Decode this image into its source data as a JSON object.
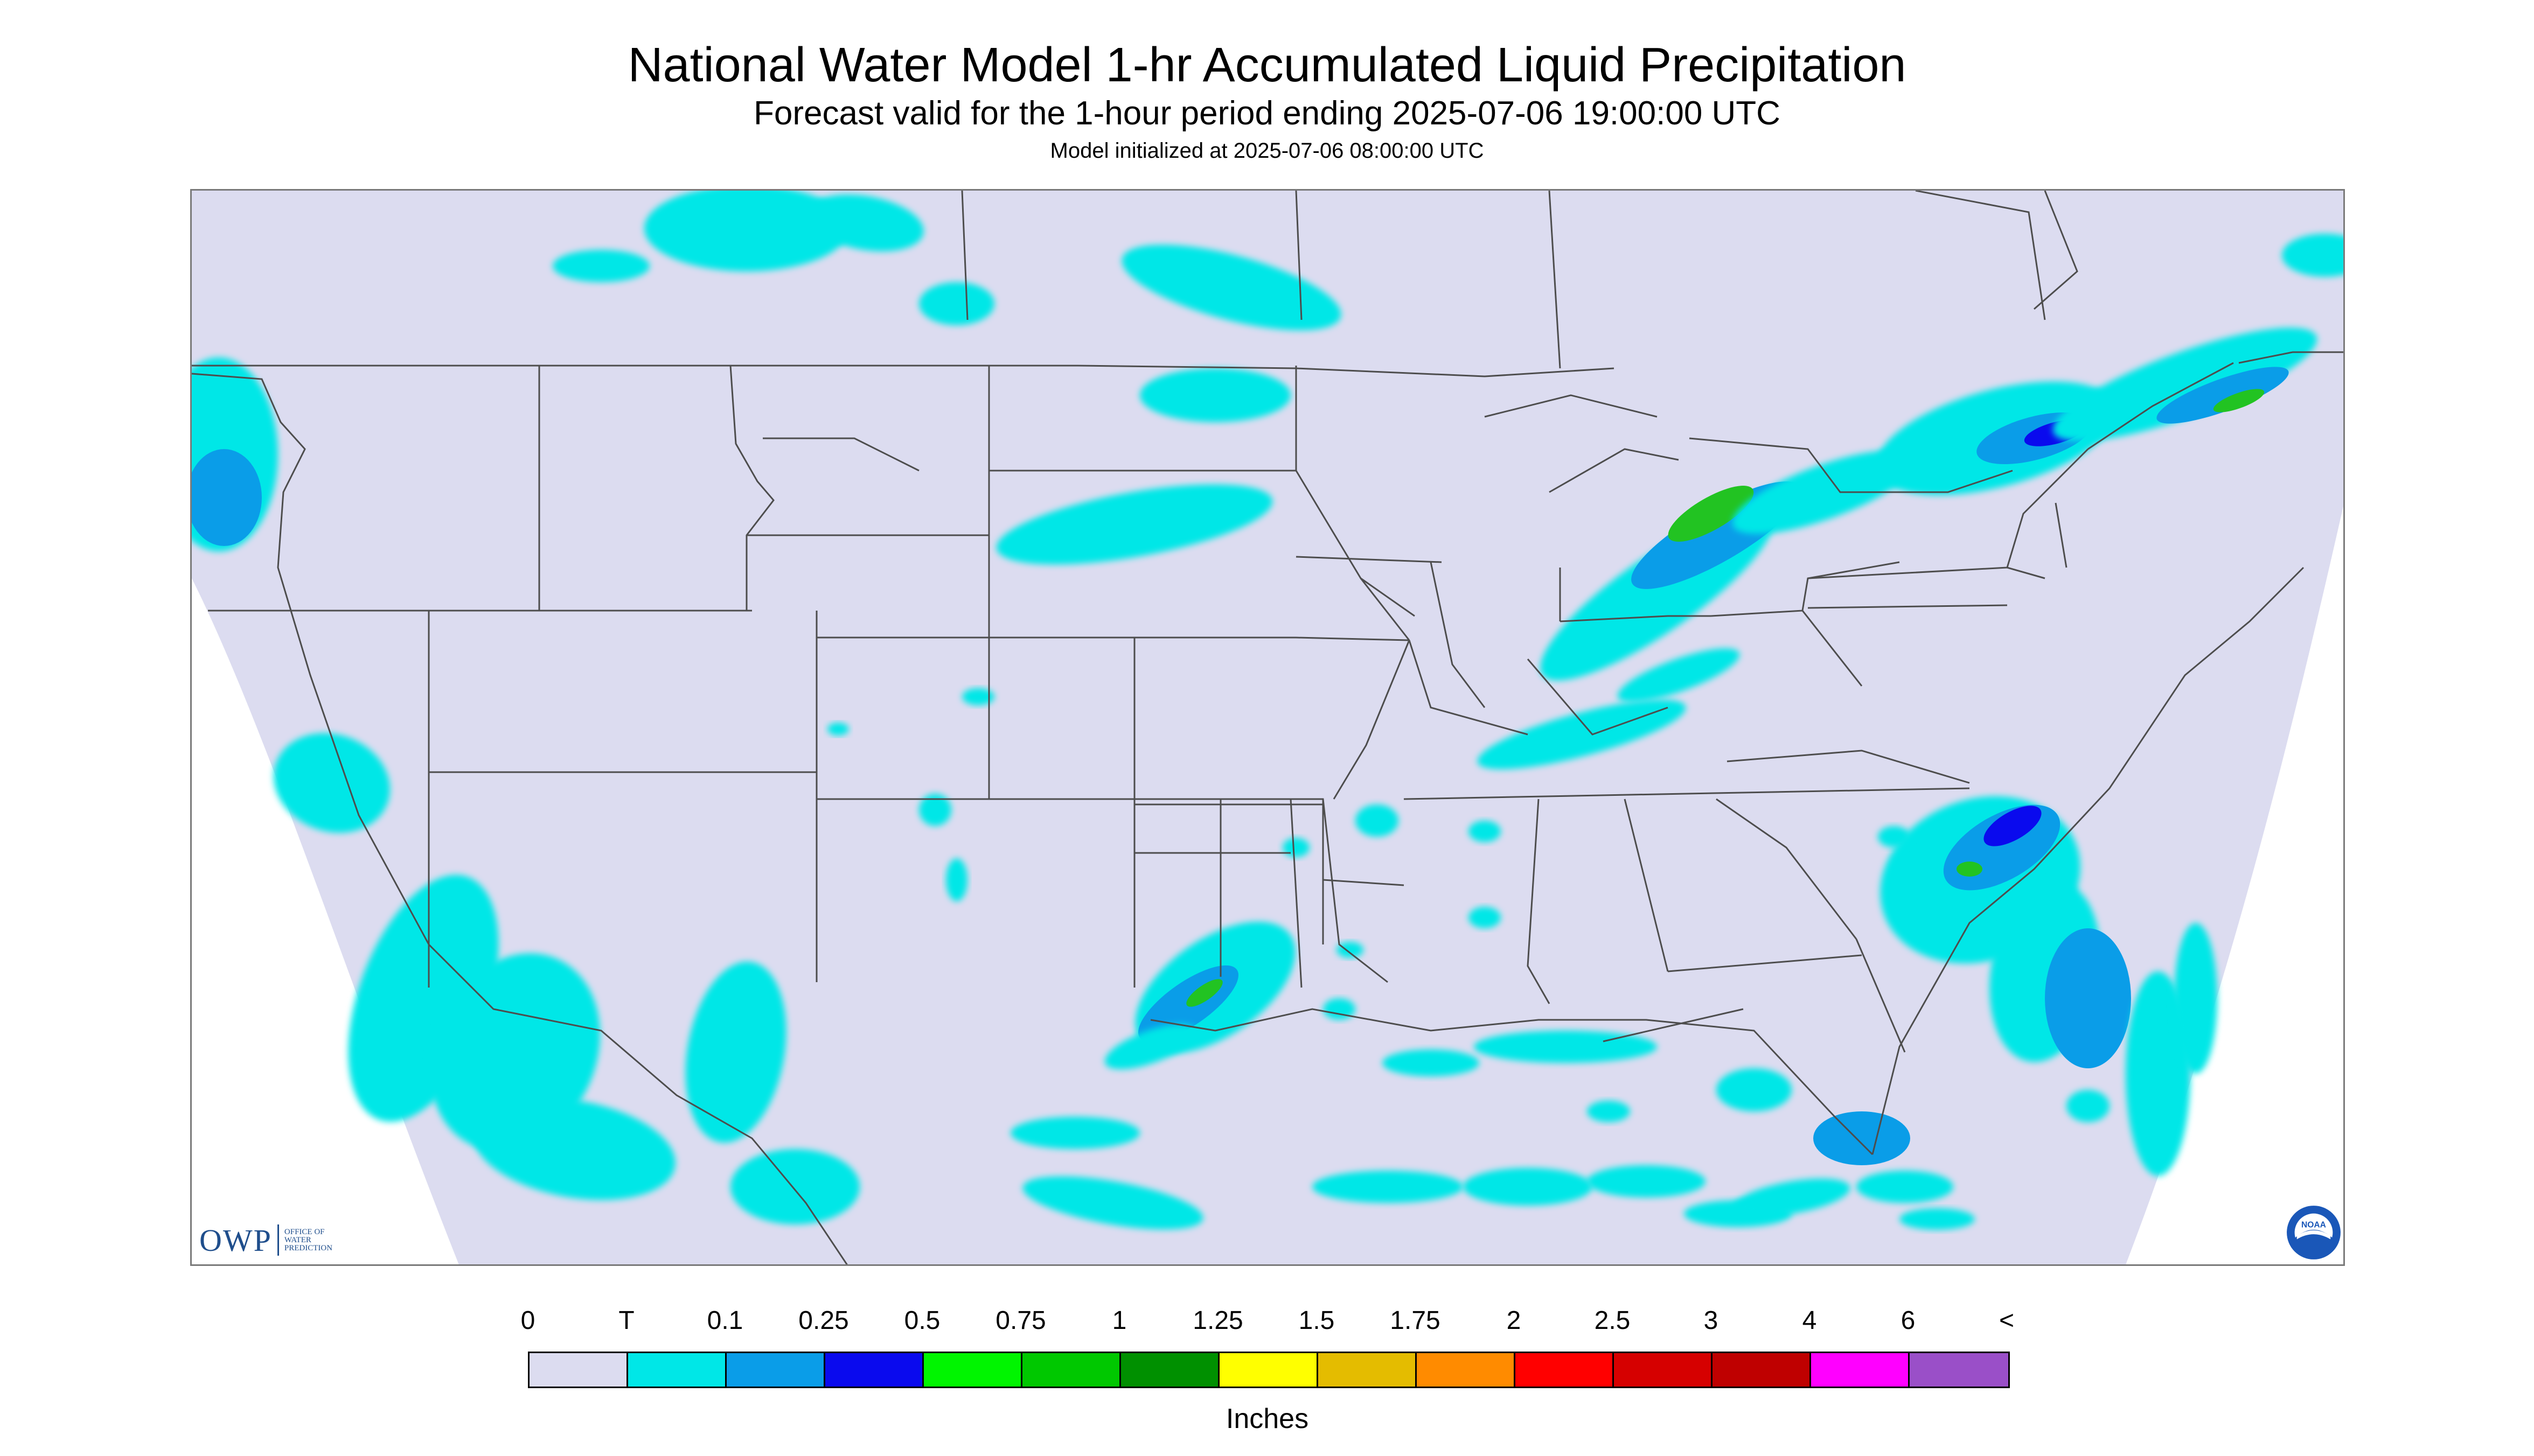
{
  "header": {
    "title": "National Water Model 1-hr Accumulated Liquid Precipitation",
    "subtitle": "Forecast valid for the 1-hour period ending 2025-07-06 19:00:00 UTC",
    "init_line": "Model initialized at 2025-07-06 08:00:00 UTC"
  },
  "map": {
    "background_color": "#dcdcf0",
    "outside_color": "#ffffff",
    "border_color": "#4d4d4d",
    "precip_light_color": "#00e7e7",
    "precip_moderate_color": "#0a9de8",
    "precip_heavy_color": "#0a0aee",
    "precip_peak_color": "#22c322"
  },
  "logos": {
    "owp_letters": "OWP",
    "owp_line1": "OFFICE OF",
    "owp_line2": "WATER",
    "owp_line3": "PREDICTION",
    "noaa_text": "NOAA"
  },
  "legend": {
    "ticks": [
      "0",
      "T",
      "0.1",
      "0.25",
      "0.5",
      "0.75",
      "1",
      "1.25",
      "1.5",
      "1.75",
      "2",
      "2.5",
      "3",
      "4",
      "6",
      "<"
    ],
    "colors": [
      "#dcdcf0",
      "#00e7e7",
      "#0a9de8",
      "#0a0aee",
      "#00f500",
      "#00c800",
      "#009000",
      "#ffff00",
      "#e4bc00",
      "#ff8b00",
      "#ff0000",
      "#d60000",
      "#bf0000",
      "#ff00ff",
      "#9a4fc8"
    ],
    "units": "Inches"
  }
}
